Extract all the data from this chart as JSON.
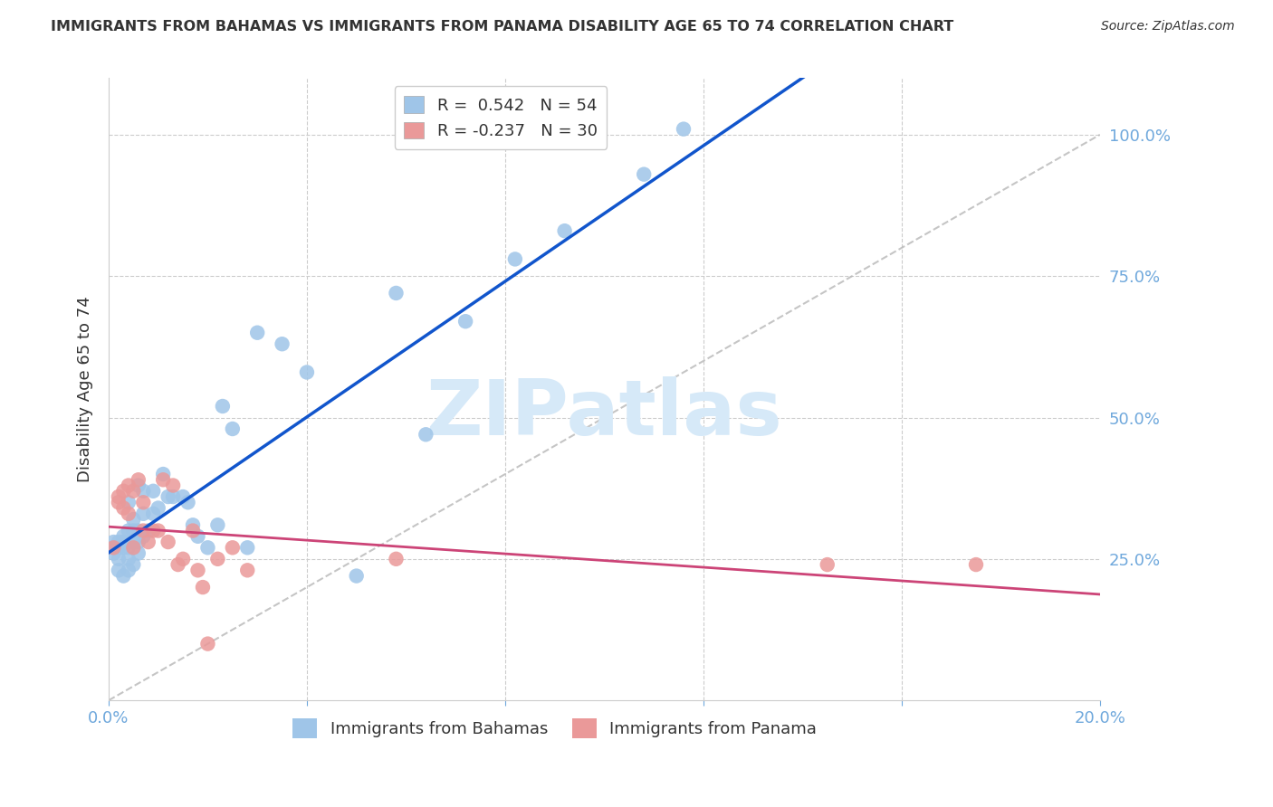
{
  "title": "IMMIGRANTS FROM BAHAMAS VS IMMIGRANTS FROM PANAMA DISABILITY AGE 65 TO 74 CORRELATION CHART",
  "source": "Source: ZipAtlas.com",
  "ylabel": "Disability Age 65 to 74",
  "bahamas_R": 0.542,
  "bahamas_N": 54,
  "panama_R": -0.237,
  "panama_N": 30,
  "bahamas_color": "#9fc5e8",
  "panama_color": "#ea9999",
  "bahamas_line_color": "#1155cc",
  "panama_line_color": "#cc4477",
  "ref_line_color": "#b7b7b7",
  "background_color": "#ffffff",
  "grid_color": "#cccccc",
  "axis_label_color": "#6fa8dc",
  "title_color": "#333333",
  "watermark_text": "ZIPatlas",
  "watermark_color": "#d6e9f8",
  "xlim": [
    0.0,
    0.2
  ],
  "ylim": [
    0.0,
    1.1
  ],
  "y_ticks": [
    0.25,
    0.5,
    0.75,
    1.0
  ],
  "y_tick_labels": [
    "25.0%",
    "50.0%",
    "75.0%",
    "100.0%"
  ],
  "x_ticks": [
    0.0,
    0.04,
    0.08,
    0.12,
    0.16,
    0.2
  ],
  "x_tick_labels": [
    "0.0%",
    "",
    "",
    "",
    "",
    "20.0%"
  ],
  "bahamas_x": [
    0.001,
    0.001,
    0.001,
    0.002,
    0.002,
    0.002,
    0.002,
    0.003,
    0.003,
    0.003,
    0.003,
    0.004,
    0.004,
    0.004,
    0.004,
    0.004,
    0.005,
    0.005,
    0.005,
    0.005,
    0.006,
    0.006,
    0.006,
    0.006,
    0.007,
    0.007,
    0.007,
    0.008,
    0.009,
    0.009,
    0.01,
    0.011,
    0.012,
    0.013,
    0.015,
    0.016,
    0.017,
    0.018,
    0.02,
    0.022,
    0.023,
    0.025,
    0.028,
    0.03,
    0.035,
    0.04,
    0.05,
    0.058,
    0.064,
    0.072,
    0.082,
    0.092,
    0.108,
    0.116
  ],
  "bahamas_y": [
    0.28,
    0.27,
    0.26,
    0.28,
    0.27,
    0.25,
    0.23,
    0.29,
    0.28,
    0.27,
    0.22,
    0.35,
    0.3,
    0.27,
    0.25,
    0.23,
    0.32,
    0.3,
    0.28,
    0.24,
    0.38,
    0.3,
    0.28,
    0.26,
    0.37,
    0.33,
    0.29,
    0.3,
    0.37,
    0.33,
    0.34,
    0.4,
    0.36,
    0.36,
    0.36,
    0.35,
    0.31,
    0.29,
    0.27,
    0.31,
    0.52,
    0.48,
    0.27,
    0.65,
    0.63,
    0.58,
    0.22,
    0.72,
    0.47,
    0.67,
    0.78,
    0.83,
    0.93,
    1.01
  ],
  "panama_x": [
    0.001,
    0.002,
    0.002,
    0.003,
    0.003,
    0.004,
    0.004,
    0.005,
    0.005,
    0.006,
    0.007,
    0.007,
    0.008,
    0.009,
    0.01,
    0.011,
    0.012,
    0.013,
    0.014,
    0.015,
    0.017,
    0.018,
    0.019,
    0.02,
    0.022,
    0.025,
    0.028,
    0.058,
    0.145,
    0.175
  ],
  "panama_y": [
    0.27,
    0.36,
    0.35,
    0.37,
    0.34,
    0.38,
    0.33,
    0.37,
    0.27,
    0.39,
    0.35,
    0.3,
    0.28,
    0.3,
    0.3,
    0.39,
    0.28,
    0.38,
    0.24,
    0.25,
    0.3,
    0.23,
    0.2,
    0.1,
    0.25,
    0.27,
    0.23,
    0.25,
    0.24,
    0.24
  ],
  "legend_bottom_label1": "Immigrants from Bahamas",
  "legend_bottom_label2": "Immigrants from Panama"
}
